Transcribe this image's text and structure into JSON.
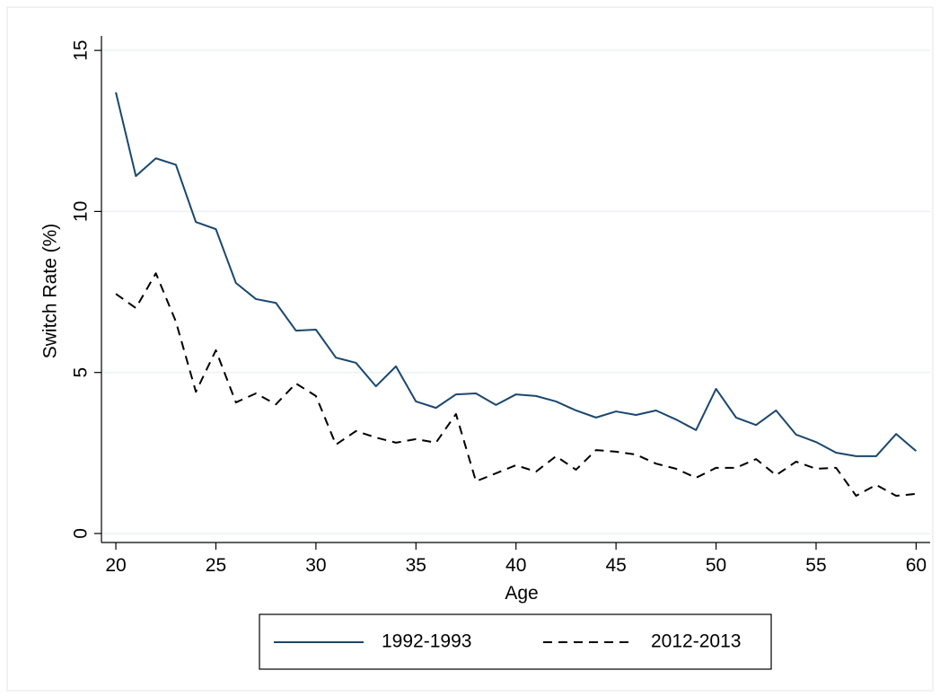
{
  "chart_data": {
    "type": "line",
    "xlabel": "Age",
    "ylabel": "Switch Rate (%)",
    "x": [
      20,
      21,
      22,
      23,
      24,
      25,
      26,
      27,
      28,
      29,
      30,
      31,
      32,
      33,
      34,
      35,
      36,
      37,
      38,
      39,
      40,
      41,
      42,
      43,
      44,
      45,
      46,
      47,
      48,
      49,
      50,
      51,
      52,
      53,
      54,
      55,
      56,
      57,
      58,
      59,
      60
    ],
    "series": [
      {
        "name": "1992-1993",
        "color": "#1a476f",
        "line_style": "solid",
        "values": [
          13.7,
          11.1,
          11.65,
          11.45,
          9.67,
          9.45,
          7.78,
          7.28,
          7.16,
          6.3,
          6.33,
          5.46,
          5.3,
          4.57,
          5.19,
          4.1,
          3.9,
          4.32,
          4.35,
          3.99,
          4.32,
          4.27,
          4.1,
          3.82,
          3.6,
          3.79,
          3.68,
          3.82,
          3.54,
          3.21,
          4.49,
          3.6,
          3.37,
          3.82,
          3.07,
          2.84,
          2.51,
          2.4,
          2.4,
          3.09,
          2.56
        ]
      },
      {
        "name": "2012-2013",
        "color": "#000000",
        "line_style": "dashed",
        "values": [
          7.44,
          7.0,
          8.08,
          6.58,
          4.4,
          5.69,
          4.07,
          4.35,
          4.01,
          4.66,
          4.27,
          2.76,
          3.18,
          2.98,
          2.82,
          2.93,
          2.82,
          3.71,
          1.62,
          1.87,
          2.12,
          1.92,
          2.4,
          1.98,
          2.59,
          2.54,
          2.45,
          2.17,
          2.01,
          1.73,
          2.04,
          2.04,
          2.31,
          1.81,
          2.23,
          2.01,
          2.04,
          1.17,
          1.51,
          1.17,
          1.23
        ]
      }
    ],
    "xlim": [
      19.28,
      60.7
    ],
    "xticks": [
      20,
      25,
      30,
      35,
      40,
      45,
      50,
      55,
      60
    ],
    "ylim": [
      -0.28,
      15.45
    ],
    "yticks": [
      0,
      5,
      10,
      15
    ],
    "grid": true,
    "legend": "bottom"
  }
}
